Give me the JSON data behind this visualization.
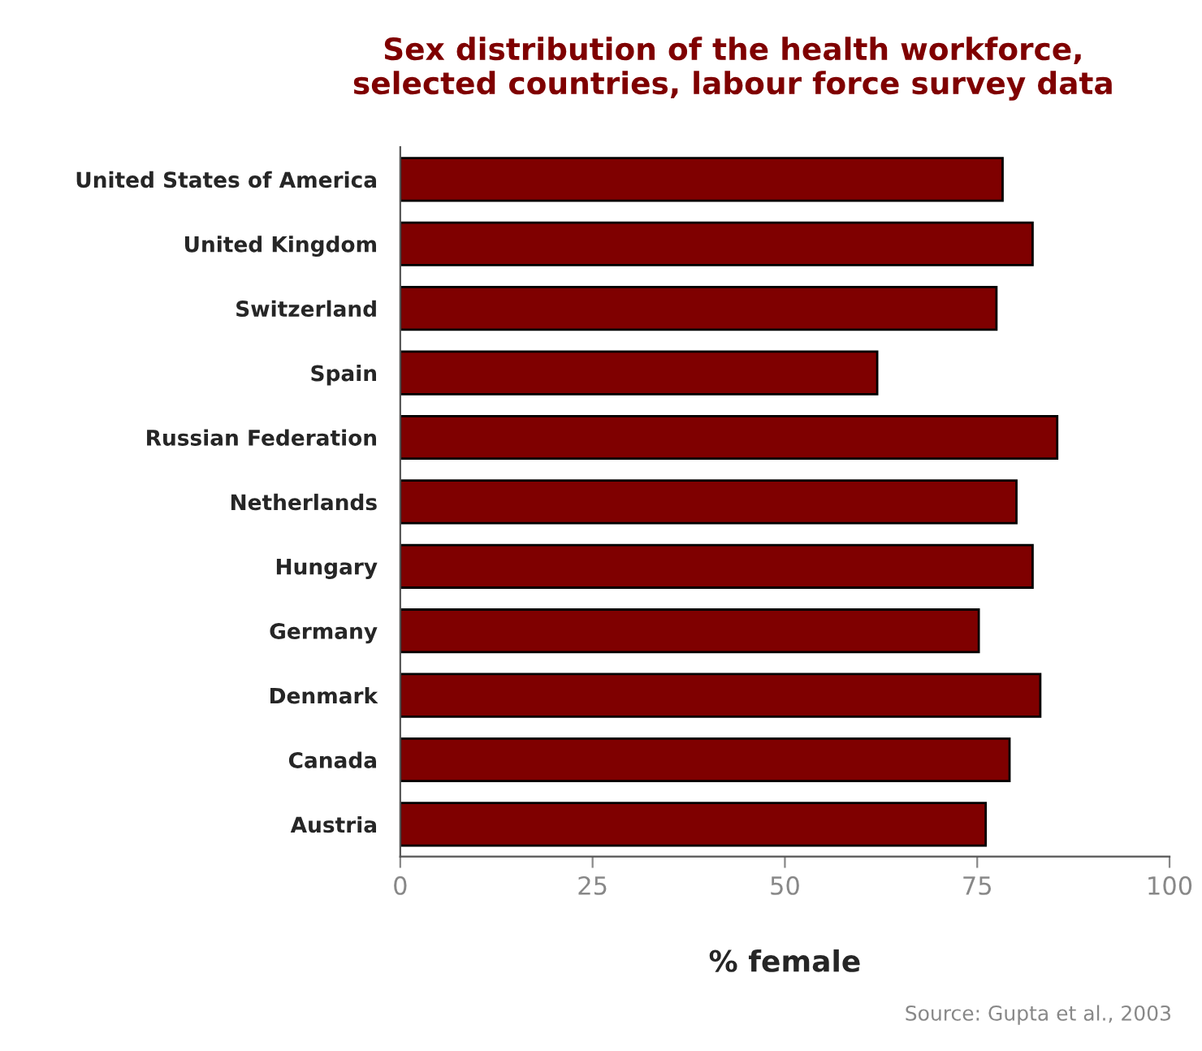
{
  "chart_data": {
    "type": "bar",
    "orientation": "horizontal",
    "title": "Sex distribution of the health workforce,\nselected countries, labour force survey data",
    "xlabel": "% female",
    "categories": [
      "United States of America",
      "United Kingdom",
      "Switzerland",
      "Spain",
      "Russian Federation",
      "Netherlands",
      "Hungary",
      "Germany",
      "Denmark",
      "Canada",
      "Austria"
    ],
    "values": [
      78.3,
      82.2,
      77.5,
      62.0,
      85.4,
      80.1,
      82.2,
      75.2,
      83.2,
      79.2,
      76.1
    ],
    "color": "#7f0000",
    "xlim": [
      0,
      100
    ],
    "xticks": [
      0,
      25,
      50,
      75,
      100
    ],
    "grid": false,
    "annotations": [
      "Source: Gupta et al., 2003"
    ]
  }
}
